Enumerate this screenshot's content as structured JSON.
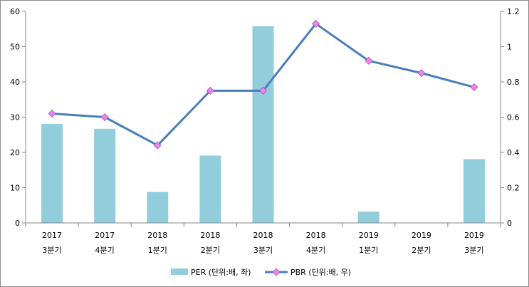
{
  "chart_data": {
    "type": "bar+line",
    "categories": [
      [
        "2017",
        "3분기"
      ],
      [
        "2017",
        "4분기"
      ],
      [
        "2018",
        "1분기"
      ],
      [
        "2018",
        "2분기"
      ],
      [
        "2018",
        "3분기"
      ],
      [
        "2018",
        "4분기"
      ],
      [
        "2019",
        "1분기"
      ],
      [
        "2019",
        "2분기"
      ],
      [
        "2019",
        "3분기"
      ]
    ],
    "series": [
      {
        "name": "PER (단위:배, 좌)",
        "type": "bar",
        "axis": "left",
        "color": "#92cddc",
        "values": [
          28.1,
          26.7,
          8.8,
          19.1,
          55.8,
          null,
          3.2,
          null,
          18.1
        ]
      },
      {
        "name": "PBR (단위:배, 우)",
        "type": "line",
        "axis": "right",
        "color": "#4a7ebb",
        "marker_color": "#ee82ee",
        "values": [
          0.62,
          0.6,
          0.44,
          0.75,
          0.75,
          1.13,
          0.92,
          0.85,
          0.77
        ]
      }
    ],
    "y_left": {
      "min": 0,
      "max": 60,
      "ticks": [
        "0",
        "10",
        "20",
        "30",
        "40",
        "50",
        "60"
      ]
    },
    "y_right": {
      "min": 0,
      "max": 1.2,
      "ticks": [
        "0",
        "0.2",
        "0.4",
        "0.6",
        "0.8",
        "1",
        "1.2"
      ]
    },
    "grid": false,
    "legend_position": "bottom"
  }
}
